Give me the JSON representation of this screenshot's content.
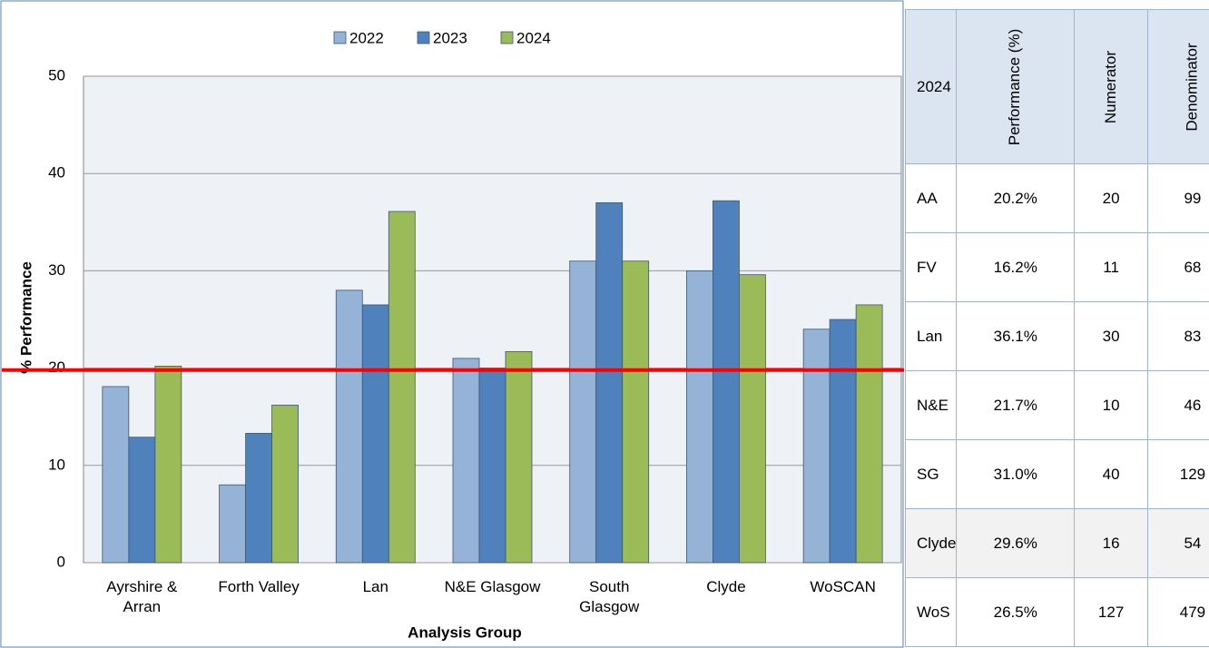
{
  "chart_data": {
    "type": "bar",
    "y_label": "% Performance",
    "x_label": "Analysis Group",
    "categories": [
      "Ayrshire &\nArran",
      "Forth Valley",
      "Lan",
      "N&E Glasgow",
      "South\nGlasgow",
      "Clyde",
      "WoSCAN"
    ],
    "series": [
      {
        "name": "2022",
        "color": "#95b3d7",
        "values": [
          18.1,
          8.0,
          28.0,
          21.0,
          31.0,
          30.0,
          24.0
        ]
      },
      {
        "name": "2023",
        "color": "#4f81bd",
        "values": [
          12.9,
          13.3,
          26.5,
          20.0,
          37.0,
          37.2,
          25.0
        ]
      },
      {
        "name": "2024",
        "color": "#9bbb59",
        "values": [
          20.2,
          16.2,
          36.1,
          21.7,
          31.0,
          29.6,
          26.5
        ]
      }
    ],
    "ylim": [
      0,
      50
    ],
    "yticks": [
      0,
      10,
      20,
      30,
      40,
      50
    ],
    "grid": true,
    "legend": "top",
    "reference_line": {
      "value": 19.8,
      "color": "#ff0000"
    }
  },
  "table": {
    "header": [
      "2024",
      "Performance (%)",
      "Numerator",
      "Denominator"
    ],
    "rows": [
      [
        "AA",
        "20.2%",
        20,
        99
      ],
      [
        "FV",
        "16.2%",
        11,
        68
      ],
      [
        "Lan",
        "36.1%",
        30,
        83
      ],
      [
        "N&E",
        "21.7%",
        10,
        46
      ],
      [
        "SG",
        "31.0%",
        40,
        129
      ],
      [
        "Clyde",
        "29.6%",
        16,
        54
      ],
      [
        "WoS",
        "26.5%",
        127,
        479
      ]
    ]
  }
}
